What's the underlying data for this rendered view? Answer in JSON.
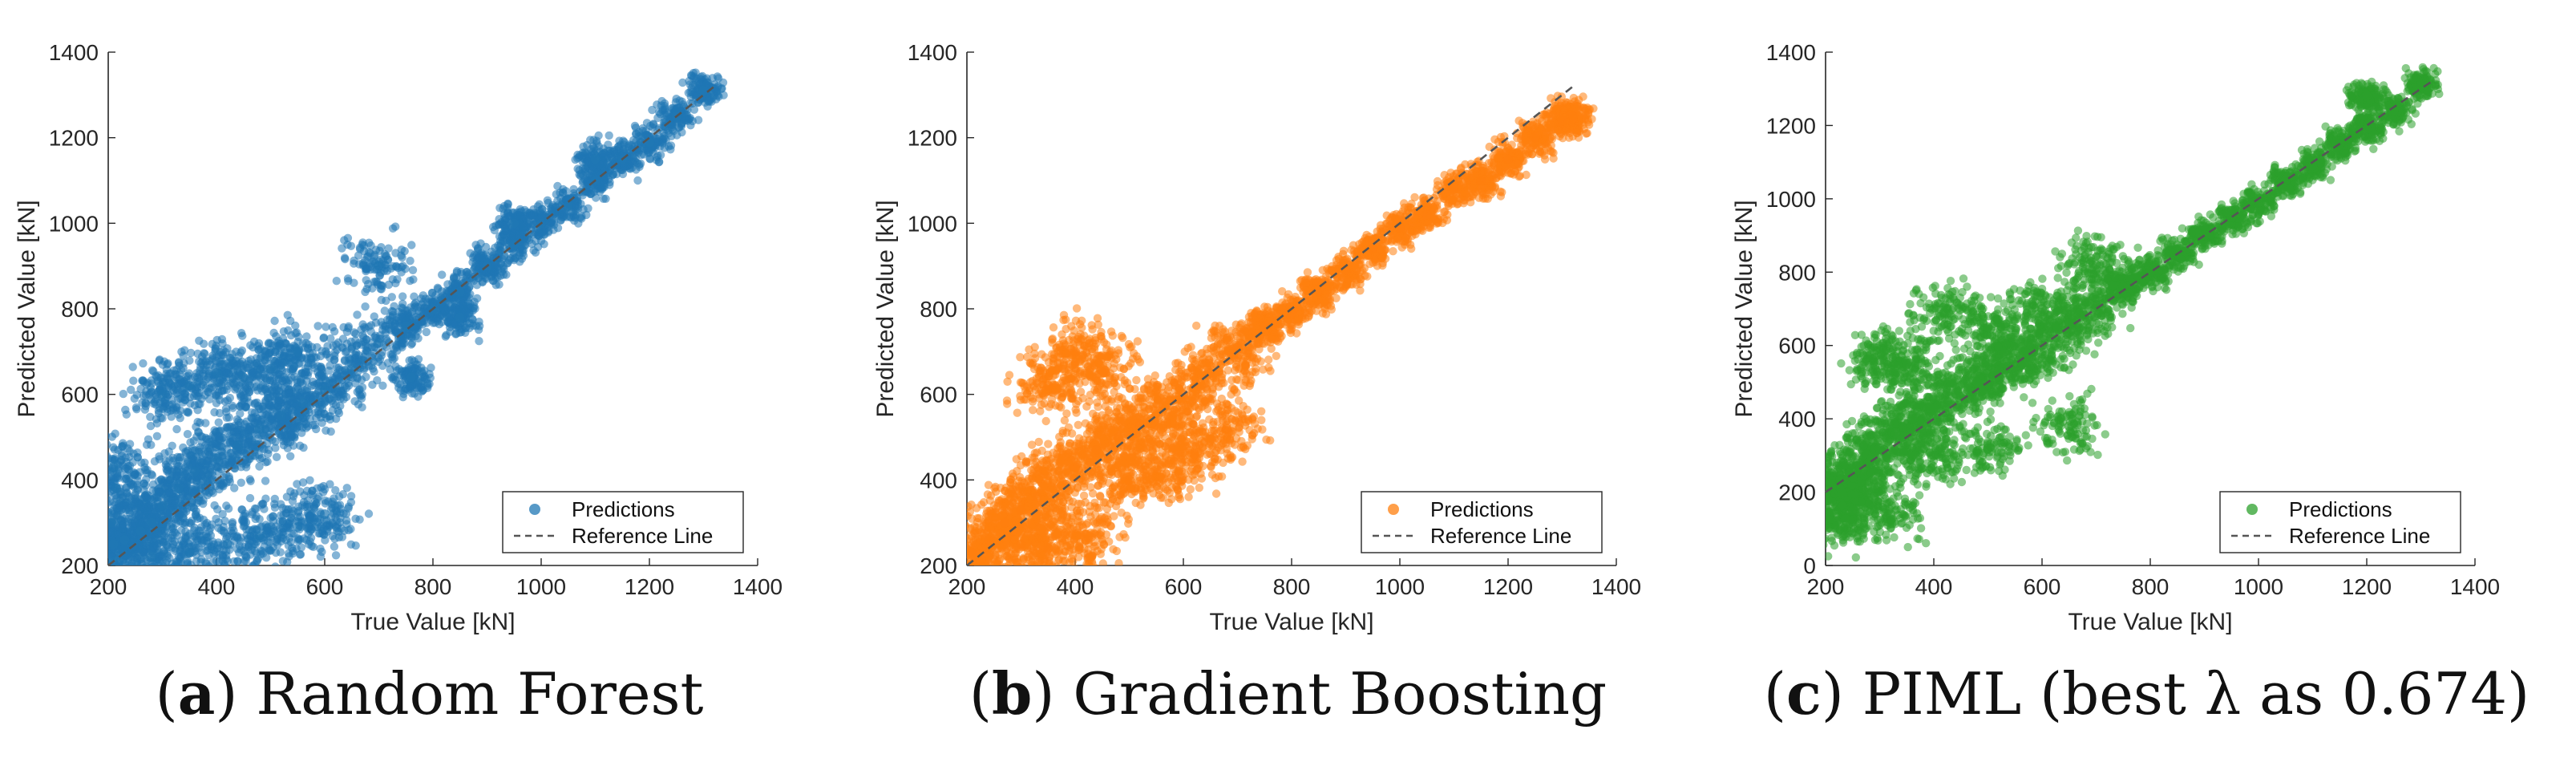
{
  "chart_data": [
    {
      "type": "scatter",
      "panel_tag": "a",
      "caption": "Random Forest",
      "color": "#1f77b4",
      "xlabel": "True Value [kN]",
      "ylabel": "Predicted Value [kN]",
      "xlim": [
        200,
        1400
      ],
      "ylim": [
        200,
        1400
      ],
      "xticks": [
        200,
        400,
        600,
        800,
        1000,
        1200,
        1400
      ],
      "yticks": [
        200,
        400,
        600,
        800,
        1000,
        1200,
        1400
      ],
      "legend_position": "bottom-right",
      "series": [
        {
          "name": "Predictions",
          "style": "points",
          "points": [
            [
              210,
              250
            ],
            [
              230,
              260
            ],
            [
              260,
              280
            ],
            [
              280,
              300
            ],
            [
              300,
              340
            ],
            [
              330,
              380
            ],
            [
              360,
              420
            ],
            [
              400,
              450
            ],
            [
              440,
              480
            ],
            [
              480,
              520
            ],
            [
              520,
              550
            ],
            [
              560,
              580
            ],
            [
              600,
              610
            ],
            [
              650,
              660
            ],
            [
              700,
              720
            ],
            [
              750,
              760
            ],
            [
              800,
              800
            ],
            [
              850,
              840
            ],
            [
              900,
              900
            ],
            [
              950,
              950
            ],
            [
              1000,
              1000
            ],
            [
              1050,
              1040
            ],
            [
              1100,
              1100
            ],
            [
              1150,
              1150
            ],
            [
              1200,
              1190
            ],
            [
              1250,
              1250
            ],
            [
              1300,
              1310
            ],
            [
              300,
              600
            ],
            [
              350,
              620
            ],
            [
              400,
              650
            ],
            [
              450,
              640
            ],
            [
              500,
              660
            ],
            [
              550,
              700
            ],
            [
              280,
              220
            ],
            [
              350,
              230
            ],
            [
              420,
              250
            ],
            [
              480,
              270
            ],
            [
              550,
              290
            ],
            [
              600,
              320
            ],
            [
              210,
              210
            ],
            [
              210,
              430
            ],
            [
              205,
              300
            ],
            [
              215,
              380
            ],
            [
              700,
              900
            ],
            [
              950,
              1000
            ],
            [
              1100,
              1150
            ],
            [
              850,
              780
            ],
            [
              760,
              640
            ]
          ]
        },
        {
          "name": "Reference Line",
          "style": "dashed-line",
          "points": [
            [
              200,
              200
            ],
            [
              1320,
              1320
            ]
          ]
        }
      ]
    },
    {
      "type": "scatter",
      "panel_tag": "b",
      "caption": "Gradient Boosting",
      "color": "#ff7f0e",
      "xlabel": "True Value [kN]",
      "ylabel": "Predicted Value [kN]",
      "xlim": [
        200,
        1400
      ],
      "ylim": [
        200,
        1400
      ],
      "xticks": [
        200,
        400,
        600,
        800,
        1000,
        1200,
        1400
      ],
      "yticks": [
        200,
        400,
        600,
        800,
        1000,
        1200,
        1400
      ],
      "legend_position": "bottom-right",
      "series": [
        {
          "name": "Predictions",
          "style": "points",
          "points": [
            [
              210,
              230
            ],
            [
              240,
              260
            ],
            [
              270,
              300
            ],
            [
              300,
              330
            ],
            [
              330,
              360
            ],
            [
              360,
              400
            ],
            [
              400,
              430
            ],
            [
              440,
              470
            ],
            [
              480,
              500
            ],
            [
              520,
              530
            ],
            [
              560,
              560
            ],
            [
              600,
              600
            ],
            [
              650,
              650
            ],
            [
              700,
              710
            ],
            [
              750,
              760
            ],
            [
              800,
              790
            ],
            [
              850,
              840
            ],
            [
              900,
              890
            ],
            [
              950,
              940
            ],
            [
              1000,
              990
            ],
            [
              1050,
              1020
            ],
            [
              1100,
              1080
            ],
            [
              1150,
              1100
            ],
            [
              1200,
              1150
            ],
            [
              1250,
              1200
            ],
            [
              1300,
              1240
            ],
            [
              1320,
              1250
            ],
            [
              400,
              700
            ],
            [
              350,
              620
            ],
            [
              450,
              650
            ],
            [
              300,
              250
            ],
            [
              350,
              240
            ],
            [
              420,
              260
            ],
            [
              210,
              210
            ],
            [
              620,
              460
            ],
            [
              680,
              520
            ],
            [
              500,
              400
            ],
            [
              560,
              430
            ]
          ]
        },
        {
          "name": "Reference Line",
          "style": "dashed-line",
          "points": [
            [
              200,
              200
            ],
            [
              1320,
              1320
            ]
          ]
        }
      ]
    },
    {
      "type": "scatter",
      "panel_tag": "c",
      "caption": "PIML (best λ as 0.674)",
      "color": "#2ca02c",
      "xlabel": "True Value [kN]",
      "ylabel": "Predicted Value [kN]",
      "xlim": [
        200,
        1400
      ],
      "ylim": [
        0,
        1400
      ],
      "xticks": [
        200,
        400,
        600,
        800,
        1000,
        1200,
        1400
      ],
      "yticks": [
        0,
        200,
        400,
        600,
        800,
        1000,
        1200,
        1400
      ],
      "legend_position": "bottom-right",
      "series": [
        {
          "name": "Predictions",
          "style": "points",
          "points": [
            [
              210,
              220
            ],
            [
              230,
              200
            ],
            [
              250,
              240
            ],
            [
              280,
              280
            ],
            [
              300,
              320
            ],
            [
              330,
              360
            ],
            [
              360,
              400
            ],
            [
              400,
              430
            ],
            [
              440,
              470
            ],
            [
              480,
              500
            ],
            [
              520,
              530
            ],
            [
              560,
              570
            ],
            [
              600,
              600
            ],
            [
              650,
              660
            ],
            [
              700,
              710
            ],
            [
              750,
              760
            ],
            [
              800,
              800
            ],
            [
              850,
              850
            ],
            [
              900,
              900
            ],
            [
              950,
              950
            ],
            [
              1000,
              990
            ],
            [
              1050,
              1050
            ],
            [
              1100,
              1090
            ],
            [
              1150,
              1150
            ],
            [
              1200,
              1190
            ],
            [
              1250,
              1240
            ],
            [
              1300,
              1310
            ],
            [
              420,
              690
            ],
            [
              350,
              550
            ],
            [
              300,
              560
            ],
            [
              500,
              650
            ],
            [
              600,
              700
            ],
            [
              220,
              120
            ],
            [
              250,
              150
            ],
            [
              320,
              140
            ],
            [
              400,
              300
            ],
            [
              500,
              320
            ],
            [
              650,
              380
            ],
            [
              700,
              820
            ],
            [
              1200,
              1280
            ]
          ]
        },
        {
          "name": "Reference Line",
          "style": "dashed-line",
          "points": [
            [
              200,
              200
            ],
            [
              1320,
              1320
            ]
          ]
        }
      ]
    }
  ]
}
